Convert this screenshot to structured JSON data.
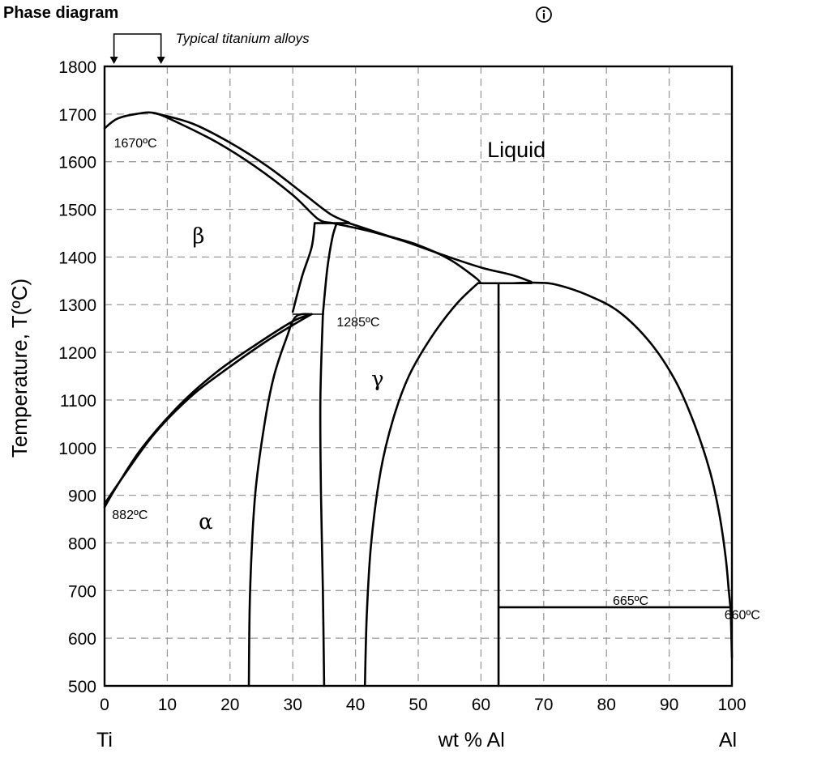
{
  "page": {
    "title": "Phase diagram",
    "info_icon": "info-circle-icon"
  },
  "chart_data": {
    "type": "line",
    "title": "",
    "xlabel": "wt % Al",
    "xlabel_left": "Ti",
    "xlabel_right": "Al",
    "ylabel": "Temperature, T(ºC)",
    "xlim": [
      0,
      100
    ],
    "ylim": [
      500,
      1800
    ],
    "xticks": [
      0,
      10,
      20,
      30,
      40,
      50,
      60,
      70,
      80,
      90,
      100
    ],
    "yticks": [
      500,
      600,
      700,
      800,
      900,
      1000,
      1100,
      1200,
      1300,
      1400,
      1500,
      1600,
      1700,
      1800
    ],
    "grid": true,
    "series": [
      {
        "id": "liquidus-left",
        "values": [
          [
            0,
            1670
          ],
          [
            2,
            1690
          ],
          [
            5,
            1700
          ],
          [
            8,
            1702
          ],
          [
            12,
            1680
          ],
          [
            18,
            1640
          ],
          [
            24,
            1590
          ],
          [
            30,
            1530
          ],
          [
            34,
            1480
          ],
          [
            36,
            1472
          ]
        ]
      },
      {
        "id": "solidus-left",
        "values": [
          [
            8,
            1702
          ],
          [
            14,
            1680
          ],
          [
            20,
            1640
          ],
          [
            26,
            1590
          ],
          [
            32,
            1530
          ],
          [
            36,
            1490
          ],
          [
            39,
            1472
          ]
        ]
      },
      {
        "id": "peritectic-1470",
        "values": [
          [
            33.5,
            1471
          ],
          [
            39,
            1471
          ]
        ]
      },
      {
        "id": "liquidus-mid",
        "values": [
          [
            36,
            1472
          ],
          [
            42,
            1455
          ],
          [
            48,
            1432
          ],
          [
            54,
            1404
          ],
          [
            60,
            1378
          ],
          [
            65,
            1362
          ],
          [
            68,
            1348
          ]
        ]
      },
      {
        "id": "solidus-mid",
        "values": [
          [
            39,
            1471
          ],
          [
            45,
            1445
          ],
          [
            50,
            1425
          ],
          [
            55,
            1395
          ],
          [
            59,
            1358
          ],
          [
            60,
            1345
          ]
        ]
      },
      {
        "id": "peritectic-1345",
        "values": [
          [
            59.5,
            1345
          ],
          [
            68,
            1345
          ]
        ]
      },
      {
        "id": "liquidus-right",
        "values": [
          [
            65,
            1345
          ],
          [
            69,
            1346
          ],
          [
            72,
            1342
          ],
          [
            77,
            1320
          ],
          [
            82,
            1285
          ],
          [
            87,
            1220
          ],
          [
            91,
            1140
          ],
          [
            94,
            1050
          ],
          [
            96.5,
            950
          ],
          [
            98,
            860
          ],
          [
            99,
            770
          ],
          [
            99.5,
            700
          ],
          [
            99.8,
            660
          ]
        ]
      },
      {
        "id": "al-solvus",
        "values": [
          [
            99.8,
            665
          ],
          [
            100,
            560
          ]
        ]
      },
      {
        "id": "eutectic-665",
        "values": [
          [
            62.8,
            665
          ],
          [
            100,
            665
          ]
        ]
      },
      {
        "id": "tial-left-boundary",
        "values": [
          [
            41.5,
            500
          ],
          [
            41.8,
            650
          ],
          [
            42.5,
            800
          ],
          [
            44,
            950
          ],
          [
            46,
            1060
          ],
          [
            48.5,
            1150
          ],
          [
            52,
            1230
          ],
          [
            56,
            1300
          ],
          [
            59.5,
            1345
          ]
        ]
      },
      {
        "id": "tial3-line",
        "values": [
          [
            62.8,
            500
          ],
          [
            62.8,
            1345
          ]
        ]
      },
      {
        "id": "beta-transus",
        "values": [
          [
            0,
            882
          ],
          [
            3,
            940
          ],
          [
            8,
            1030
          ],
          [
            14,
            1110
          ],
          [
            20,
            1170
          ],
          [
            26,
            1225
          ],
          [
            31,
            1265
          ],
          [
            33,
            1280
          ]
        ]
      },
      {
        "id": "alpha-transus",
        "values": [
          [
            0,
            875
          ],
          [
            2,
            920
          ],
          [
            6,
            1000
          ],
          [
            12,
            1090
          ],
          [
            18,
            1160
          ],
          [
            24,
            1215
          ],
          [
            30,
            1265
          ],
          [
            33,
            1280
          ]
        ]
      },
      {
        "id": "peritectoid-1285",
        "values": [
          [
            30,
            1280
          ],
          [
            35,
            1280
          ]
        ]
      },
      {
        "id": "alpha-beta-upper",
        "values": [
          [
            30,
            1285
          ],
          [
            31.5,
            1360
          ],
          [
            33,
            1420
          ],
          [
            33.5,
            1471
          ]
        ]
      },
      {
        "id": "alpha-gamma-upper",
        "values": [
          [
            34.8,
            1280
          ],
          [
            35.5,
            1375
          ],
          [
            36.3,
            1440
          ],
          [
            37,
            1471
          ]
        ]
      },
      {
        "id": "ti3al-left",
        "values": [
          [
            23,
            500
          ],
          [
            23.2,
            700
          ],
          [
            24,
            900
          ],
          [
            25.5,
            1050
          ],
          [
            27,
            1150
          ],
          [
            29,
            1230
          ],
          [
            30.5,
            1275
          ],
          [
            33,
            1280
          ]
        ]
      },
      {
        "id": "ti3al-right",
        "values": [
          [
            35,
            500
          ],
          [
            34.8,
            700
          ],
          [
            34.5,
            900
          ],
          [
            34.4,
            1100
          ],
          [
            34.8,
            1280
          ]
        ]
      }
    ],
    "annotations": [
      {
        "text": "1670ºC",
        "x": 1.5,
        "y": 1640
      },
      {
        "text": "1285ºC",
        "x": 37,
        "y": 1265
      },
      {
        "text": "882ºC",
        "x": 1.2,
        "y": 860
      },
      {
        "text": "665ºC",
        "x": 81,
        "y": 680
      },
      {
        "text": "660ºC",
        "x": 104.5,
        "y": 650
      },
      {
        "text": "Liquid",
        "x": 61,
        "y": 1620
      },
      {
        "text": "β",
        "x": 14,
        "y": 1440
      },
      {
        "text": "γ",
        "x": 42.5,
        "y": 1140
      },
      {
        "text": "α",
        "x": 15,
        "y": 840
      }
    ],
    "bracket": {
      "label": "Typical titanium alloys",
      "x_range": [
        1.5,
        9
      ]
    }
  }
}
